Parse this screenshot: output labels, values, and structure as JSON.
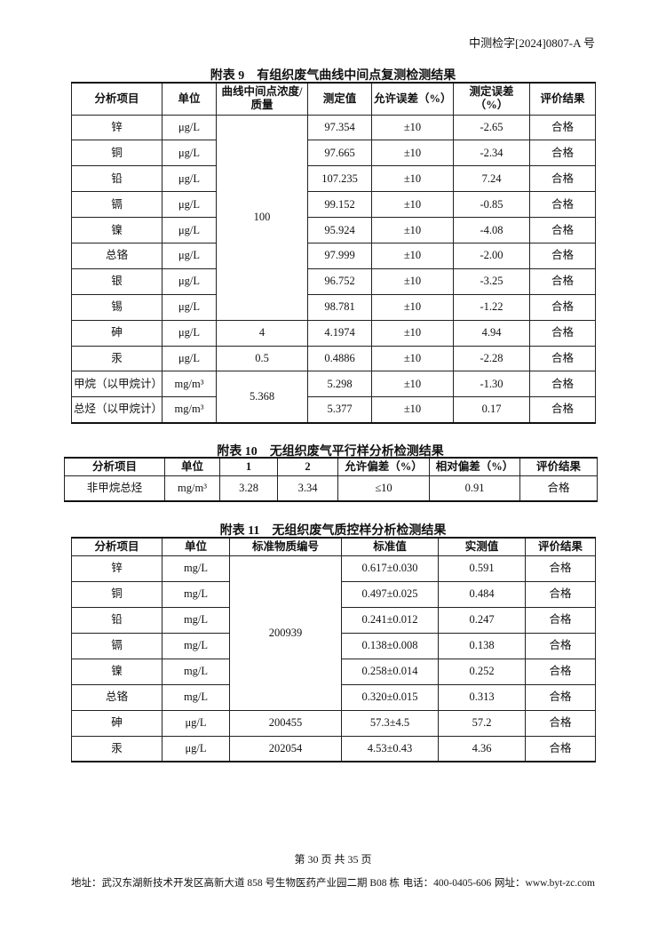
{
  "header": {
    "report_no": "中测检字[2024]0807-A 号"
  },
  "tables": [
    {
      "title": "附表 9　有组织废气曲线中间点复测检测结果",
      "columns": [
        "分析项目",
        "单位",
        "曲线中间点浓度/质量",
        "测定值",
        "允许误差（%）",
        "测定误差（%）",
        "评价结果"
      ],
      "rows": [
        [
          "锌",
          "μg/L",
          "100",
          "97.354",
          "±10",
          "-2.65",
          "合格"
        ],
        [
          "铜",
          "μg/L",
          null,
          "97.665",
          "±10",
          "-2.34",
          "合格"
        ],
        [
          "铅",
          "μg/L",
          null,
          "107.235",
          "±10",
          "7.24",
          "合格"
        ],
        [
          "镉",
          "μg/L",
          null,
          "99.152",
          "±10",
          "-0.85",
          "合格"
        ],
        [
          "镍",
          "μg/L",
          null,
          "95.924",
          "±10",
          "-4.08",
          "合格"
        ],
        [
          "总铬",
          "μg/L",
          null,
          "97.999",
          "±10",
          "-2.00",
          "合格"
        ],
        [
          "银",
          "μg/L",
          null,
          "96.752",
          "±10",
          "-3.25",
          "合格"
        ],
        [
          "锡",
          "μg/L",
          null,
          "98.781",
          "±10",
          "-1.22",
          "合格"
        ],
        [
          "砷",
          "μg/L",
          "4",
          "4.1974",
          "±10",
          "4.94",
          "合格"
        ],
        [
          "汞",
          "μg/L",
          "0.5",
          "0.4886",
          "±10",
          "-2.28",
          "合格"
        ],
        [
          "甲烷（以甲烷计）",
          "mg/m³",
          "5.368",
          "5.298",
          "±10",
          "-1.30",
          "合格"
        ],
        [
          "总烃（以甲烷计）",
          "mg/m³",
          null,
          "5.377",
          "±10",
          "0.17",
          "合格"
        ]
      ]
    },
    {
      "title": "附表 10　无组织废气平行样分析检测结果",
      "columns": [
        "分析项目",
        "单位",
        "1",
        "2",
        "允许偏差（%）",
        "相对偏差（%）",
        "评价结果"
      ],
      "rows": [
        [
          "非甲烷总烃",
          "mg/m³",
          "3.28",
          "3.34",
          "≤10",
          "0.91",
          "合格"
        ]
      ]
    },
    {
      "title": "附表 11　无组织废气质控样分析检测结果",
      "columns": [
        "分析项目",
        "单位",
        "标准物质编号",
        "标准值",
        "实测值",
        "评价结果"
      ],
      "rows": [
        [
          "锌",
          "mg/L",
          "200939",
          "0.617±0.030",
          "0.591",
          "合格"
        ],
        [
          "铜",
          "mg/L",
          null,
          "0.497±0.025",
          "0.484",
          "合格"
        ],
        [
          "铅",
          "mg/L",
          null,
          "0.241±0.012",
          "0.247",
          "合格"
        ],
        [
          "镉",
          "mg/L",
          null,
          "0.138±0.008",
          "0.138",
          "合格"
        ],
        [
          "镍",
          "mg/L",
          null,
          "0.258±0.014",
          "0.252",
          "合格"
        ],
        [
          "总铬",
          "mg/L",
          null,
          "0.320±0.015",
          "0.313",
          "合格"
        ],
        [
          "砷",
          "μg/L",
          "200455",
          "57.3±4.5",
          "57.2",
          "合格"
        ],
        [
          "汞",
          "μg/L",
          "202054",
          "4.53±0.43",
          "4.36",
          "合格"
        ]
      ]
    }
  ],
  "footer": {
    "page": "第 30 页 共 35 页",
    "address": "地址：武汉东湖新技术开发区高新大道 858 号生物医药产业园二期 B08 栋",
    "phone": "电话：400-0405-606",
    "website": "网址：www.byt-zc.com"
  }
}
